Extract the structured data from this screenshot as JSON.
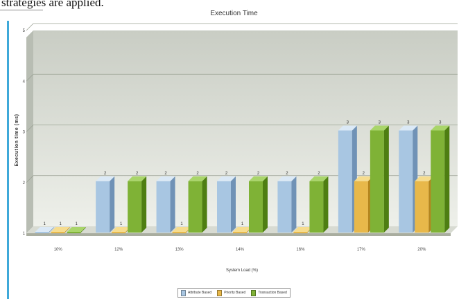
{
  "page": {
    "text_fragment": "strategies are applied."
  },
  "colors": {
    "series": [
      "#a8c6e2",
      "#e8b84a",
      "#7fb236"
    ],
    "series_dark": [
      "#7092b6",
      "#b5851e",
      "#4e7e12"
    ],
    "series_top": [
      "#dbe9f6",
      "#f6dc8e",
      "#a9d56a"
    ],
    "plot_bg_top": "#c9cdc4",
    "plot_bg_bottom": "#eef0ea",
    "accent_bar": "#3fa9d9"
  },
  "chart_data": {
    "type": "bar",
    "title": "Execution Time",
    "xlabel": "System Load (%)",
    "ylabel": "Execution time (ms)",
    "categories": [
      "10%",
      "12%",
      "13%",
      "14%",
      "16%",
      "17%",
      "20%"
    ],
    "y_ticks": [
      "1",
      "2",
      "3",
      "4",
      "5"
    ],
    "ylim": [
      1,
      5
    ],
    "grid": true,
    "legend_position": "bottom",
    "series": [
      {
        "name": "Attribute Based",
        "values": [
          1,
          2,
          2,
          2,
          2,
          3,
          3
        ]
      },
      {
        "name": "Priority Based",
        "values": [
          1,
          1,
          1,
          1,
          1,
          2,
          2
        ]
      },
      {
        "name": "Transaction Based",
        "values": [
          1,
          2,
          2,
          2,
          2,
          3,
          3
        ]
      }
    ],
    "data_labels": [
      [
        "1",
        "2",
        "2",
        "2",
        "2",
        "3",
        "3"
      ],
      [
        "1",
        "1",
        "1",
        "1",
        "1",
        "2",
        "2"
      ],
      [
        "1",
        "2",
        "2",
        "2",
        "2",
        "3",
        "3"
      ]
    ]
  }
}
